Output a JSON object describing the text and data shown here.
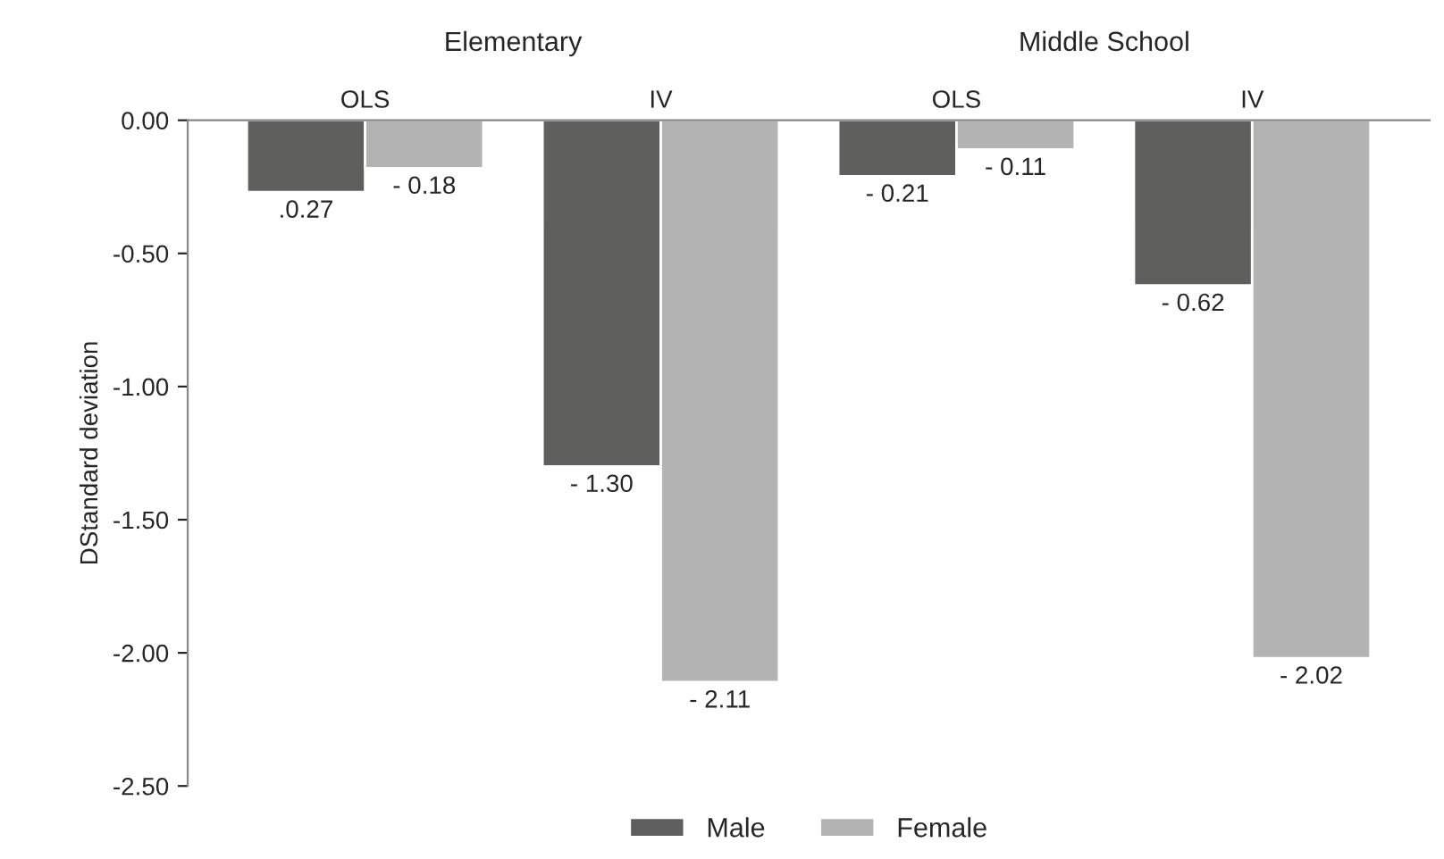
{
  "chart_data": {
    "type": "bar",
    "ylabel": "DStandard deviation",
    "categories": [
      "OLS",
      "IV",
      "OLS",
      "IV"
    ],
    "series": [
      {
        "name": "Male",
        "color": "#5f5f5d",
        "values": [
          -0.27,
          -1.3,
          -0.21,
          -0.62
        ],
        "value_labels": [
          ".0.27",
          "- 1.30",
          "- 0.21",
          "- 0.62"
        ]
      },
      {
        "name": "Female",
        "color": "#b3b3b3",
        "values": [
          -0.18,
          -2.11,
          -0.11,
          -2.02
        ],
        "value_labels": [
          "- 0.18",
          "- 2.11",
          "- 0.11",
          "- 2.02"
        ]
      }
    ],
    "annotations": [
      "Elementary",
      "Middle School"
    ],
    "ylim": [
      -2.5,
      0
    ],
    "yticks": [
      {
        "value": 0,
        "label": "0.00"
      },
      {
        "value": -0.5,
        "label": "-0.50"
      },
      {
        "value": -1.0,
        "label": "-1.00"
      },
      {
        "value": -1.5,
        "label": "-1.50"
      },
      {
        "value": -2.0,
        "label": "-2.00"
      },
      {
        "value": -2.5,
        "label": "-2.50"
      }
    ],
    "grid": false,
    "legend": "bottom"
  }
}
